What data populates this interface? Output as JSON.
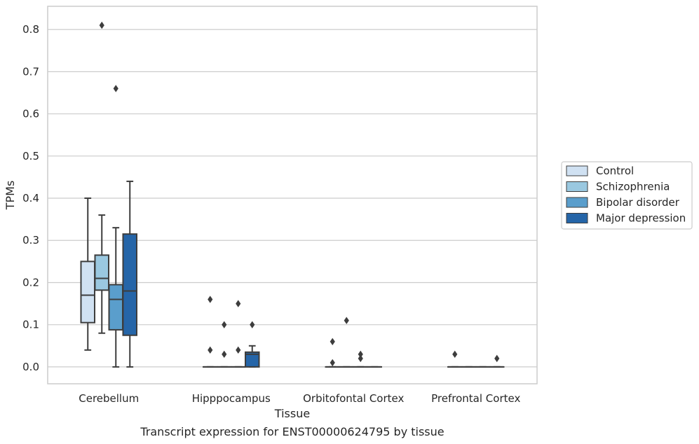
{
  "chart_data": {
    "type": "boxplot",
    "xlabel": "Tissue",
    "ylabel": "TPMs",
    "caption": "Transcript expression for ENST00000624795 by tissue",
    "ylim": [
      -0.04,
      0.855
    ],
    "yticks": [
      0.0,
      0.1,
      0.2,
      0.3,
      0.4,
      0.5,
      0.6,
      0.7,
      0.8
    ],
    "ytick_labels": [
      "0.0",
      "0.1",
      "0.2",
      "0.3",
      "0.4",
      "0.5",
      "0.6",
      "0.7",
      "0.8"
    ],
    "grid": "horizontal",
    "legend_placement": "right-outside",
    "categories": [
      "Cerebellum",
      "Hipppocampus",
      "Orbitofontal Cortex",
      "Prefrontal Cortex"
    ],
    "series": [
      {
        "name": "Control",
        "color": "#d0e1f2",
        "boxes": [
          {
            "whislo": 0.04,
            "q1": 0.105,
            "med": 0.17,
            "q3": 0.25,
            "whishi": 0.4,
            "fliers": []
          },
          {
            "whislo": 0.0,
            "q1": 0.0,
            "med": 0.0,
            "q3": 0.0,
            "whishi": 0.0,
            "fliers": [
              0.16,
              0.04
            ]
          },
          {
            "whislo": 0.0,
            "q1": 0.0,
            "med": 0.0,
            "q3": 0.0,
            "whishi": 0.0,
            "fliers": [
              0.06,
              0.01
            ]
          },
          {
            "whislo": 0.0,
            "q1": 0.0,
            "med": 0.0,
            "q3": 0.0,
            "whishi": 0.0,
            "fliers": [
              0.03
            ]
          }
        ]
      },
      {
        "name": "Schizophrenia",
        "color": "#9ac8e0",
        "boxes": [
          {
            "whislo": 0.08,
            "q1": 0.182,
            "med": 0.21,
            "q3": 0.265,
            "whishi": 0.36,
            "fliers": [
              0.81
            ]
          },
          {
            "whislo": 0.0,
            "q1": 0.0,
            "med": 0.0,
            "q3": 0.0,
            "whishi": 0.0,
            "fliers": [
              0.1,
              0.03
            ]
          },
          {
            "whislo": 0.0,
            "q1": 0.0,
            "med": 0.0,
            "q3": 0.0,
            "whishi": 0.0,
            "fliers": [
              0.11
            ]
          },
          {
            "whislo": 0.0,
            "q1": 0.0,
            "med": 0.0,
            "q3": 0.0,
            "whishi": 0.0,
            "fliers": []
          }
        ]
      },
      {
        "name": "Bipolar disorder",
        "color": "#5a9ecc",
        "boxes": [
          {
            "whislo": 0.0,
            "q1": 0.088,
            "med": 0.16,
            "q3": 0.195,
            "whishi": 0.33,
            "fliers": [
              0.66
            ]
          },
          {
            "whislo": 0.0,
            "q1": 0.0,
            "med": 0.0,
            "q3": 0.0,
            "whishi": 0.0,
            "fliers": [
              0.15,
              0.04
            ]
          },
          {
            "whislo": 0.0,
            "q1": 0.0,
            "med": 0.0,
            "q3": 0.0,
            "whishi": 0.0,
            "fliers": [
              0.03,
              0.02
            ]
          },
          {
            "whislo": 0.0,
            "q1": 0.0,
            "med": 0.0,
            "q3": 0.0,
            "whishi": 0.0,
            "fliers": []
          }
        ]
      },
      {
        "name": "Major depression",
        "color": "#2565a8",
        "boxes": [
          {
            "whislo": 0.0,
            "q1": 0.075,
            "med": 0.18,
            "q3": 0.315,
            "whishi": 0.44,
            "fliers": []
          },
          {
            "whislo": 0.0,
            "q1": 0.0,
            "med": 0.03,
            "q3": 0.035,
            "whishi": 0.05,
            "fliers": [
              0.1
            ]
          },
          {
            "whislo": 0.0,
            "q1": 0.0,
            "med": 0.0,
            "q3": 0.0,
            "whishi": 0.0,
            "fliers": []
          },
          {
            "whislo": 0.0,
            "q1": 0.0,
            "med": 0.0,
            "q3": 0.0,
            "whishi": 0.0,
            "fliers": [
              0.02
            ]
          }
        ]
      }
    ]
  }
}
